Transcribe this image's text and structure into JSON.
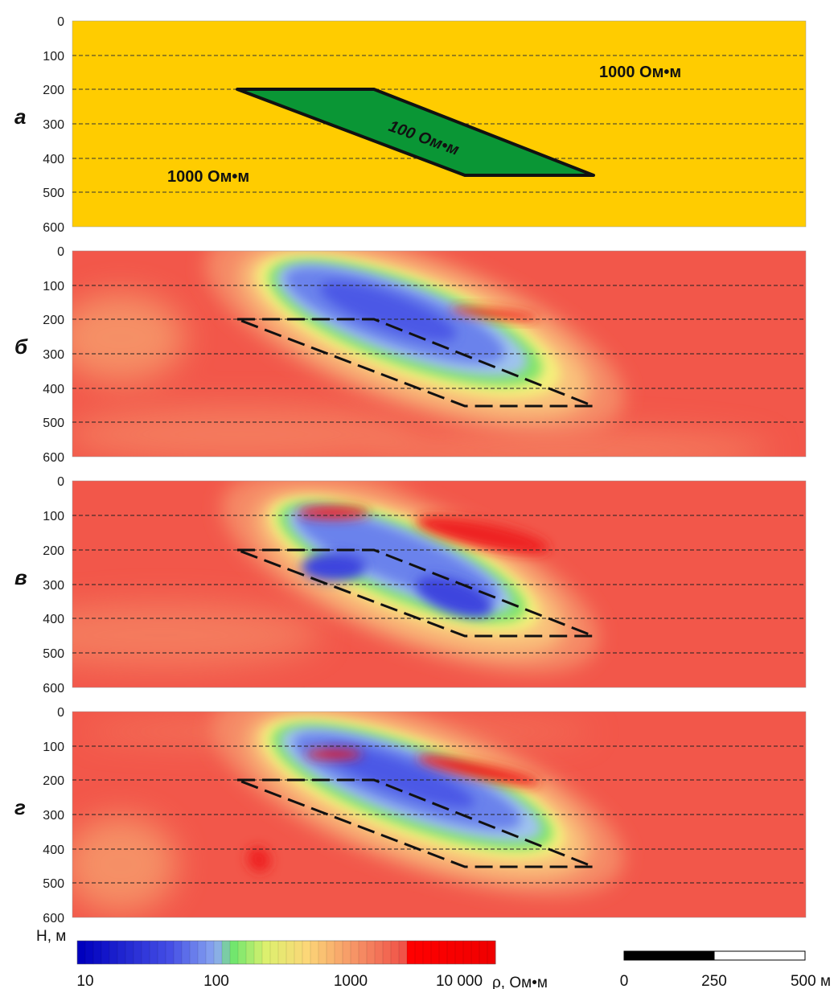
{
  "panels": [
    {
      "id": "a",
      "label": "а",
      "depth_ticks": [
        "0",
        "100",
        "200",
        "300",
        "400",
        "500",
        "600"
      ]
    },
    {
      "id": "b",
      "label": "б",
      "depth_ticks": [
        "0",
        "100",
        "200",
        "300",
        "400",
        "500",
        "600"
      ]
    },
    {
      "id": "v",
      "label": "в",
      "depth_ticks": [
        "0",
        "100",
        "200",
        "300",
        "400",
        "500",
        "600"
      ]
    },
    {
      "id": "g",
      "label": "г",
      "depth_ticks": [
        "0",
        "100",
        "200",
        "300",
        "400",
        "500",
        "600"
      ]
    }
  ],
  "model": {
    "host_resistivity_label_top": "1000 Ом•м",
    "host_resistivity_label_bottom": "1000 Ом•м",
    "body_resistivity_label": "100 Ом•м",
    "host_color": "#ffcc00",
    "body_color": "#0a9635"
  },
  "axis": {
    "depth_label": "H, м"
  },
  "colorbar": {
    "tick_labels": [
      "10",
      "100",
      "1000",
      "10 000"
    ],
    "unit_label": "ρ, Ом•м",
    "low_color": "#0000cc",
    "high_color": "#ff0000"
  },
  "scalebar": {
    "tick_labels": [
      "0",
      "250",
      "500 м"
    ]
  }
}
